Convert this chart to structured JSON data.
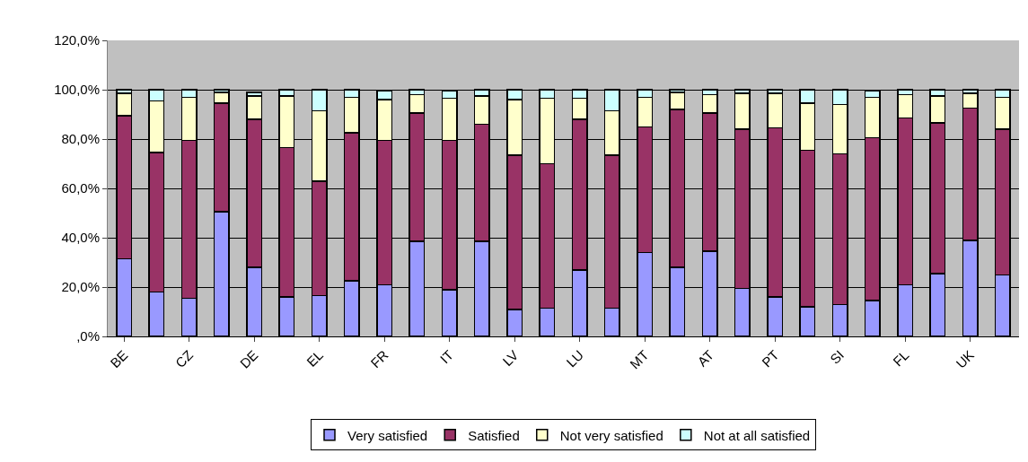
{
  "chart_data": {
    "type": "bar",
    "stacked": true,
    "categories": [
      "BE",
      null,
      "CZ",
      null,
      "DE",
      null,
      "EL",
      null,
      "FR",
      null,
      "IT",
      null,
      "LV",
      null,
      "LU",
      null,
      "MT",
      null,
      "AT",
      null,
      "PT",
      null,
      "SI",
      null,
      "FL",
      null,
      "UK",
      null
    ],
    "series": [
      {
        "name": "Very satisfied",
        "color": "#9999ff",
        "values": [
          31.5,
          18,
          15.5,
          50.5,
          28,
          16,
          16.5,
          22.5,
          21,
          38.5,
          19,
          38.5,
          11,
          11.5,
          27,
          11.5,
          34,
          28,
          34.5,
          19.5,
          16,
          12,
          13,
          14.5,
          21,
          25.5,
          39,
          25
        ]
      },
      {
        "name": "Satisfied",
        "color": "#993366",
        "values": [
          58,
          56.5,
          64,
          44,
          60,
          60.5,
          46.5,
          60,
          58.5,
          52,
          60.5,
          47.5,
          62.5,
          58.5,
          61,
          62,
          51,
          64,
          56,
          64.5,
          68.5,
          63.5,
          61,
          66,
          67.5,
          61,
          53.5,
          59
        ]
      },
      {
        "name": "Not very satisfied",
        "color": "#ffffcc",
        "values": [
          9,
          21,
          17.5,
          4.5,
          9.5,
          21,
          28.5,
          14.5,
          16.5,
          7.5,
          17,
          11.5,
          22.5,
          26.5,
          8.5,
          18,
          12,
          7,
          7.5,
          14.5,
          14,
          19,
          20,
          16.5,
          9.5,
          11,
          6,
          13
        ]
      },
      {
        "name": "Not at all satisfied",
        "color": "#ccffff",
        "values": [
          1.5,
          4.5,
          3,
          1,
          1.5,
          2.5,
          8.5,
          3,
          3.5,
          2,
          3,
          2.5,
          4,
          3.5,
          3.5,
          8.5,
          3,
          1,
          2,
          1.5,
          1.5,
          5.5,
          6,
          2.5,
          2,
          2.5,
          1.5,
          3
        ]
      }
    ],
    "ylim": [
      0,
      120
    ],
    "yticks": [
      {
        "value": 0,
        "label": ",0%"
      },
      {
        "value": 20,
        "label": "20,0%"
      },
      {
        "value": 40,
        "label": "40,0%"
      },
      {
        "value": 60,
        "label": "60,0%"
      },
      {
        "value": 80,
        "label": "80,0%"
      },
      {
        "value": 100,
        "label": "100,0%"
      },
      {
        "value": 120,
        "label": "120,0%"
      }
    ],
    "grid": "y",
    "legend": "bottom"
  }
}
